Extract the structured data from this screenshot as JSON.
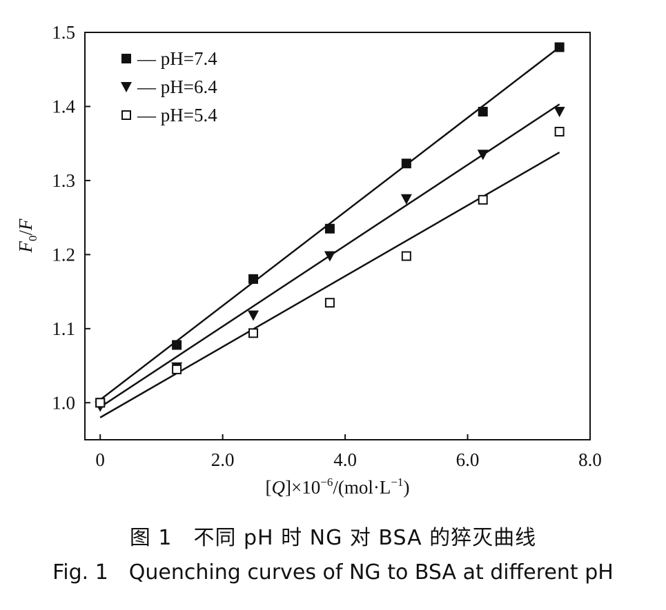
{
  "chart_data": {
    "type": "scatter",
    "xlabel_parts": [
      "[",
      "Q",
      "]×10",
      "−6",
      "/(mol·L",
      "−1",
      ")"
    ],
    "ylabel_parts": [
      "F",
      "0",
      "/",
      "F"
    ],
    "xlim": [
      -0.25,
      8.0
    ],
    "ylim": [
      0.95,
      1.5
    ],
    "xticks": [
      {
        "value": 0,
        "label": "0"
      },
      {
        "value": 2.0,
        "label": "2.0"
      },
      {
        "value": 4.0,
        "label": "4.0"
      },
      {
        "value": 6.0,
        "label": "6.0"
      },
      {
        "value": 8.0,
        "label": "8.0"
      }
    ],
    "yticks": [
      {
        "value": 1.0,
        "label": "1.0"
      },
      {
        "value": 1.1,
        "label": "1.1"
      },
      {
        "value": 1.2,
        "label": "1.2"
      },
      {
        "value": 1.3,
        "label": "1.3"
      },
      {
        "value": 1.4,
        "label": "1.4"
      },
      {
        "value": 1.5,
        "label": "1.5"
      }
    ],
    "grid": false,
    "legend_position": "top-left",
    "series": [
      {
        "name": "pH=7.4",
        "marker": "filled-square",
        "legend_label": "— pH=7.4",
        "x": [
          0,
          1.25,
          2.5,
          3.75,
          5.0,
          6.25,
          7.5
        ],
        "y": [
          1.0,
          1.078,
          1.167,
          1.235,
          1.323,
          1.393,
          1.48
        ],
        "fit": {
          "x": [
            0,
            7.5
          ],
          "y": [
            1.004,
            1.48
          ]
        }
      },
      {
        "name": "pH=6.4",
        "marker": "filled-triangle-down",
        "legend_label": "— pH=6.4",
        "x": [
          0,
          1.25,
          2.5,
          3.75,
          5.0,
          6.25,
          7.5
        ],
        "y": [
          0.995,
          1.048,
          1.118,
          1.198,
          1.275,
          1.335,
          1.393
        ],
        "fit": {
          "x": [
            0,
            7.5
          ],
          "y": [
            0.994,
            1.403
          ]
        }
      },
      {
        "name": "pH=5.4",
        "marker": "open-square",
        "legend_label": "— pH=5.4",
        "x": [
          0,
          1.25,
          2.5,
          3.75,
          5.0,
          6.25,
          7.5
        ],
        "y": [
          1.0,
          1.045,
          1.094,
          1.135,
          1.198,
          1.274,
          1.366
        ],
        "fit": {
          "x": [
            0,
            7.5
          ],
          "y": [
            0.98,
            1.338
          ]
        }
      }
    ]
  },
  "caption": {
    "chinese": "图 1　不同 pH 时 NG 对 BSA 的猝灭曲线",
    "english": "Fig. 1　Quenching curves of NG to BSA at different pH"
  }
}
